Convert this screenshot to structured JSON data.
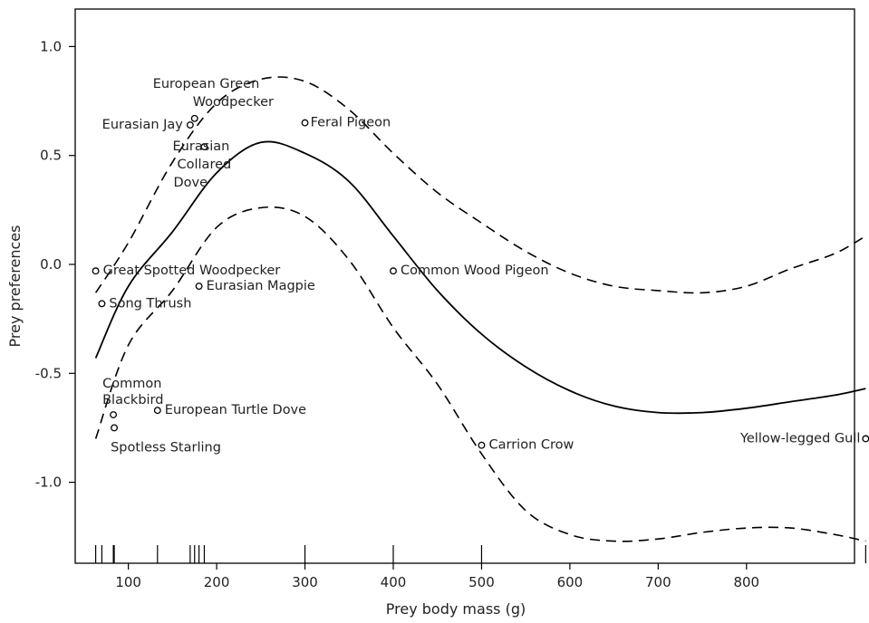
{
  "chart_data": {
    "type": "scatter",
    "xlabel": "Prey body mass (g)",
    "ylabel": "Prey preferences",
    "xlim": [
      30,
      950
    ],
    "ylim": [
      -1.35,
      1.2
    ],
    "x_ticks": [
      100,
      200,
      300,
      400,
      500,
      600,
      700,
      800
    ],
    "x_tick_labels": [
      "100",
      "200",
      "300",
      "400",
      "500",
      "600",
      "700",
      "800"
    ],
    "y_ticks": [
      1.0,
      0.5,
      0.0,
      -0.5,
      -1.0
    ],
    "y_tick_labels": [
      "1.0",
      "0.5",
      "0.0",
      "-0.5",
      "-1.0"
    ],
    "grid": false,
    "points": [
      {
        "x": 63,
        "y": -0.03,
        "label": "Great Spotted Woodpecker"
      },
      {
        "x": 70,
        "y": -0.18,
        "label": "Song Thrush"
      },
      {
        "x": 83,
        "y": -0.69,
        "label": "Common Blackbird"
      },
      {
        "x": 84,
        "y": -0.75,
        "label": "Spotless Starling"
      },
      {
        "x": 133,
        "y": -0.67,
        "label": "European Turtle Dove"
      },
      {
        "x": 170,
        "y": 0.64,
        "label": "Eurasian Jay"
      },
      {
        "x": 175,
        "y": 0.67,
        "label": "European Green Woodpecker"
      },
      {
        "x": 180,
        "y": -0.1,
        "label": "Eurasian Magpie"
      },
      {
        "x": 186,
        "y": 0.54,
        "label": "Eurasian Collared Dove"
      },
      {
        "x": 300,
        "y": 0.65,
        "label": "Feral Pigeon"
      },
      {
        "x": 400,
        "y": -0.03,
        "label": "Common Wood Pigeon"
      },
      {
        "x": 500,
        "y": -0.83,
        "label": "Carrion Crow"
      },
      {
        "x": 935,
        "y": -0.8,
        "label": "Yellow-legged Gull"
      }
    ],
    "fit": {
      "x": [
        63,
        100,
        150,
        200,
        250,
        300,
        350,
        400,
        450,
        500,
        550,
        600,
        650,
        700,
        750,
        800,
        850,
        900,
        935
      ],
      "y": [
        -0.43,
        -0.1,
        0.15,
        0.42,
        0.56,
        0.51,
        0.38,
        0.13,
        -0.12,
        -0.32,
        -0.47,
        -0.58,
        -0.65,
        -0.68,
        -0.68,
        -0.66,
        -0.63,
        -0.6,
        -0.57
      ]
    },
    "ci_upper": {
      "x": [
        63,
        100,
        150,
        200,
        250,
        300,
        350,
        400,
        450,
        500,
        550,
        600,
        650,
        700,
        750,
        800,
        850,
        900,
        935
      ],
      "y": [
        -0.13,
        0.1,
        0.47,
        0.74,
        0.85,
        0.84,
        0.71,
        0.51,
        0.33,
        0.19,
        0.06,
        -0.04,
        -0.1,
        -0.12,
        -0.13,
        -0.1,
        -0.02,
        0.05,
        0.13
      ]
    },
    "ci_lower": {
      "x": [
        63,
        100,
        150,
        200,
        250,
        300,
        350,
        400,
        450,
        500,
        550,
        600,
        650,
        700,
        750,
        800,
        850,
        900,
        935
      ],
      "y": [
        -0.8,
        -0.37,
        -0.12,
        0.17,
        0.26,
        0.22,
        0.02,
        -0.29,
        -0.55,
        -0.87,
        -1.13,
        -1.24,
        -1.27,
        -1.26,
        -1.23,
        -1.21,
        -1.21,
        -1.24,
        -1.27
      ]
    },
    "rug_x": [
      63,
      70,
      83,
      84,
      133,
      170,
      175,
      180,
      186,
      300,
      400,
      500,
      935
    ]
  }
}
